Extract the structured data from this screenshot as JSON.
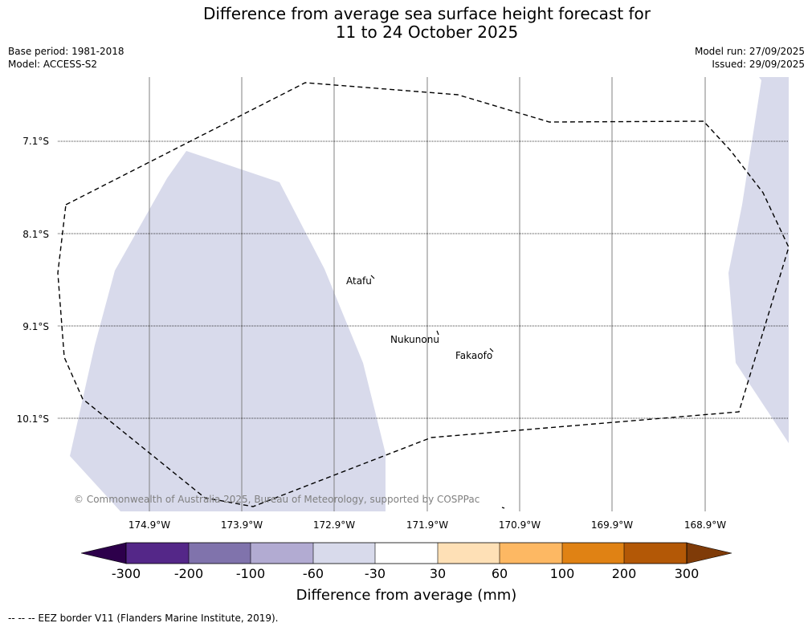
{
  "title_line1": "Difference from average sea surface height forecast for",
  "title_line2": "11 to 24 October 2025",
  "base_period": "Base period: 1981-2018",
  "model": "Model: ACCESS-S2",
  "model_run": "Model run: 27/09/2025",
  "issued": "Issued: 29/09/2025",
  "lat_labels": [
    "7.1°S",
    "8.1°S",
    "9.1°S",
    "10.1°S"
  ],
  "lon_labels": [
    "174.9°W",
    "173.9°W",
    "172.9°W",
    "171.9°W",
    "170.9°W",
    "169.9°W",
    "168.9°W"
  ],
  "places": [
    "Atafu",
    "Nukunonu",
    "Fakaofo"
  ],
  "copyright": "© Commonwealth of Australia 2025, Bureau of Meteorology, supported by COSPPac",
  "colorbar": {
    "ticks": [
      "-300",
      "-200",
      "-100",
      "-60",
      "-30",
      "30",
      "60",
      "100",
      "200",
      "300"
    ],
    "colors": [
      "#2d004b",
      "#542788",
      "#8073ac",
      "#b2abd2",
      "#d8daeb",
      "#ffffff",
      "#fee0b6",
      "#fdb863",
      "#e08214",
      "#b35806",
      "#7f3b08"
    ],
    "label": "Difference from average (mm)"
  },
  "shade_color": "#d8daeb",
  "legend_note": "--  --  -- EEZ border V11 (Flanders Marine Institute, 2019)."
}
